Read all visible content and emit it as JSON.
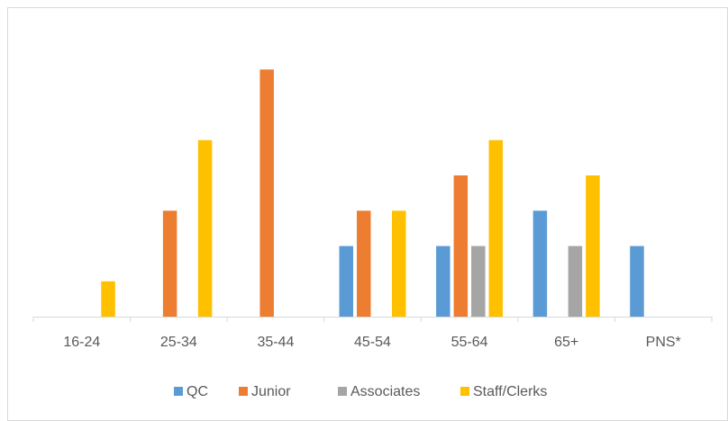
{
  "chart_data": {
    "type": "bar",
    "categories": [
      "16-24",
      "25-34",
      "35-44",
      "45-54",
      "55-64",
      "65+",
      "PNS*"
    ],
    "series": [
      {
        "name": "QC",
        "color": "#5b9bd5",
        "values": [
          0,
          0,
          0,
          2,
          2,
          3,
          2
        ]
      },
      {
        "name": "Junior",
        "color": "#ed7d31",
        "values": [
          0,
          3,
          7,
          3,
          4,
          0,
          0
        ]
      },
      {
        "name": "Associates",
        "color": "#a5a5a5",
        "values": [
          0,
          0,
          0,
          0,
          2,
          2,
          0
        ]
      },
      {
        "name": "Staff/Clerks",
        "color": "#ffc000",
        "values": [
          1,
          5,
          0,
          3,
          5,
          4,
          0
        ]
      }
    ],
    "ylim": [
      0,
      8
    ],
    "legend": "bottom"
  }
}
